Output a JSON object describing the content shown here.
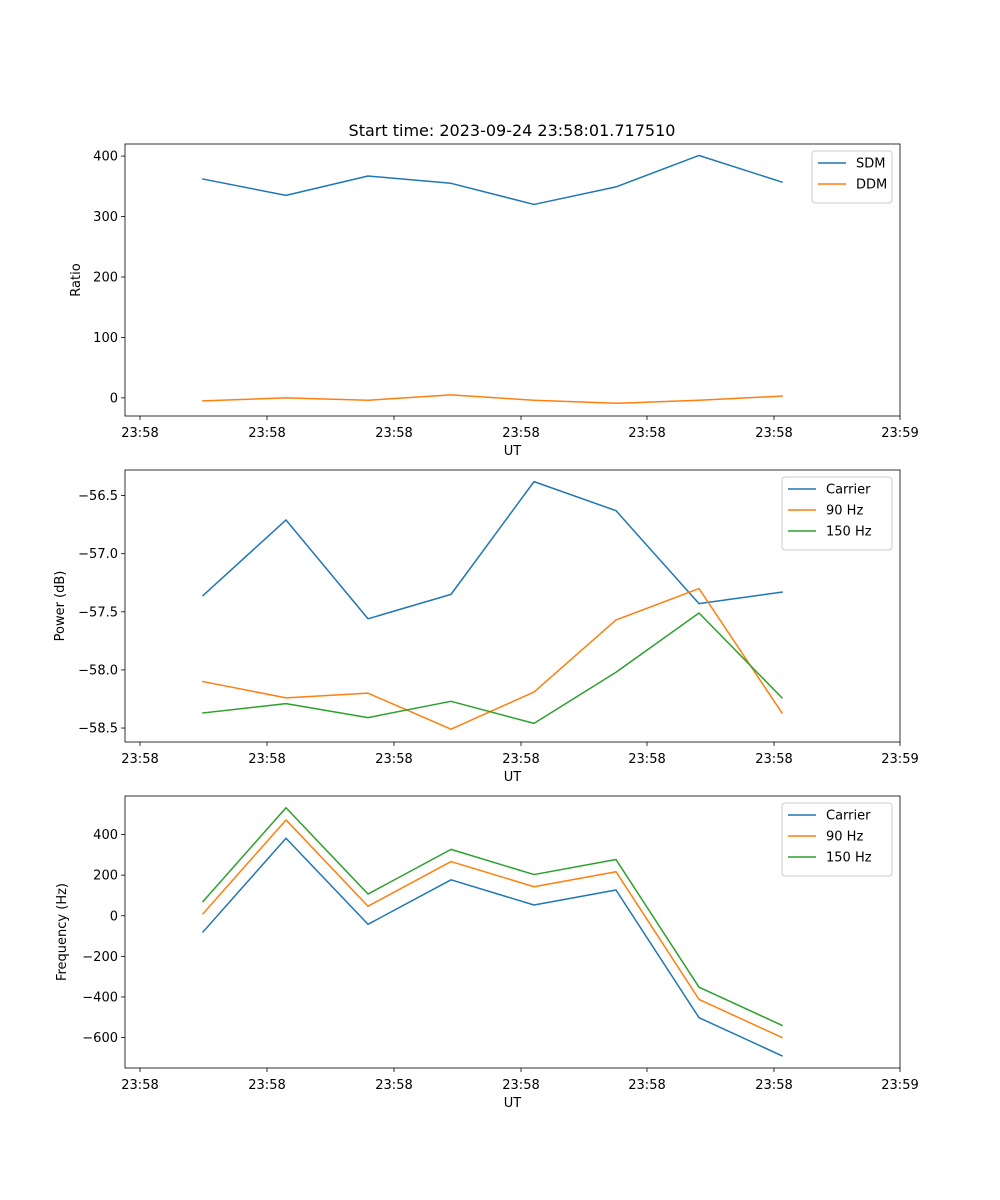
{
  "chart_data": [
    {
      "type": "line",
      "title": "Start time: 2023-09-24 23:58:01.717510",
      "xlabel": "UT",
      "ylabel": "Ratio",
      "x_ticks": [
        "23:58",
        "23:58",
        "23:58",
        "23:58",
        "23:58",
        "23:58",
        "23:59"
      ],
      "ylim": [
        -30,
        420
      ],
      "y_ticks": [
        0,
        100,
        200,
        300,
        400
      ],
      "legend": "top-right",
      "series": [
        {
          "name": "SDM",
          "color": "#1f77b4",
          "values": [
            362,
            335,
            367,
            355,
            320,
            349,
            401,
            357
          ]
        },
        {
          "name": "DDM",
          "color": "#ff7f0e",
          "values": [
            -5,
            0,
            -4,
            5,
            -4,
            -9,
            -4,
            3
          ]
        }
      ]
    },
    {
      "type": "line",
      "title": "",
      "xlabel": "UT",
      "ylabel": "Power (dB)",
      "x_ticks": [
        "23:58",
        "23:58",
        "23:58",
        "23:58",
        "23:58",
        "23:58",
        "23:59"
      ],
      "ylim": [
        -58.62,
        -56.28
      ],
      "y_ticks": [
        -56.5,
        -57.0,
        -57.5,
        -58.0,
        -58.5
      ],
      "y_tick_labels": [
        "−56.5",
        "−57.0",
        "−57.5",
        "−58.0",
        "−58.5"
      ],
      "legend": "top-right",
      "series": [
        {
          "name": "Carrier",
          "color": "#1f77b4",
          "values": [
            -57.36,
            -56.71,
            -57.56,
            -57.35,
            -56.38,
            -56.63,
            -57.43,
            -57.33
          ]
        },
        {
          "name": "90 Hz",
          "color": "#ff7f0e",
          "values": [
            -58.1,
            -58.24,
            -58.2,
            -58.51,
            -58.19,
            -57.57,
            -57.3,
            -58.37
          ]
        },
        {
          "name": "150 Hz",
          "color": "#2ca02c",
          "values": [
            -58.37,
            -58.29,
            -58.41,
            -58.27,
            -58.46,
            -58.02,
            -57.51,
            -58.24
          ]
        }
      ]
    },
    {
      "type": "line",
      "title": "",
      "xlabel": "UT",
      "ylabel": "Frequency (Hz)",
      "x_ticks": [
        "23:58",
        "23:58",
        "23:58",
        "23:58",
        "23:58",
        "23:58",
        "23:59"
      ],
      "ylim": [
        -750,
        590
      ],
      "y_ticks": [
        400,
        200,
        0,
        -200,
        -400,
        -600
      ],
      "y_tick_labels": [
        "400",
        "200",
        "0",
        "−200",
        "−400",
        "−600"
      ],
      "legend": "top-right",
      "series": [
        {
          "name": "Carrier",
          "color": "#1f77b4",
          "values": [
            -80,
            382,
            -42,
            177,
            53,
            127,
            -502,
            -690
          ]
        },
        {
          "name": "90 Hz",
          "color": "#ff7f0e",
          "values": [
            10,
            472,
            47,
            267,
            143,
            217,
            -412,
            -600
          ]
        },
        {
          "name": "150 Hz",
          "color": "#2ca02c",
          "values": [
            70,
            532,
            107,
            327,
            203,
            277,
            -352,
            -540
          ]
        }
      ]
    }
  ]
}
